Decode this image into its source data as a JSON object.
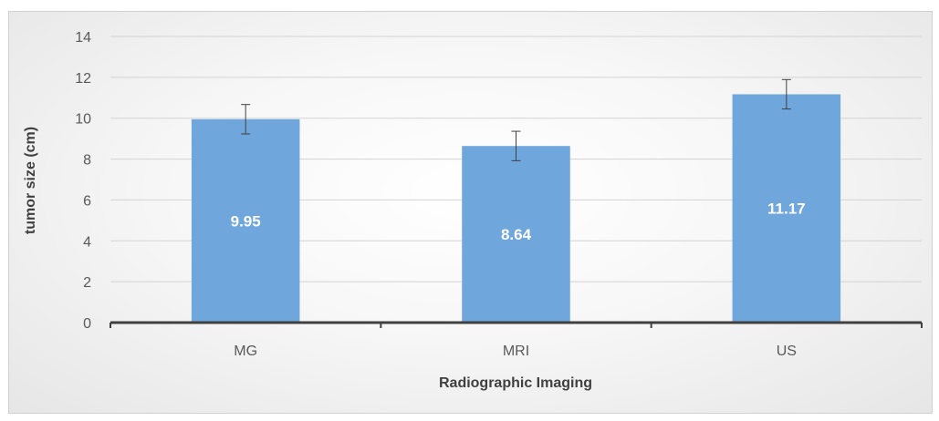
{
  "chart_data": {
    "type": "bar",
    "categories": [
      "MG",
      "MRI",
      "US"
    ],
    "values": [
      9.95,
      8.64,
      11.17
    ],
    "error": [
      0.72,
      0.72,
      0.72
    ],
    "data_labels": [
      "9.95",
      "8.64",
      "11.17"
    ],
    "xlabel": "Radiographic Imaging",
    "ylabel": "tumor size (cm)",
    "ylim": [
      0,
      14
    ],
    "yticks": [
      "0",
      "2",
      "4",
      "6",
      "8",
      "10",
      "12",
      "14"
    ],
    "grid": true,
    "bar_color": "#6fa6dc",
    "grid_color": "#d3d3d3",
    "axis_color": "#404040"
  }
}
